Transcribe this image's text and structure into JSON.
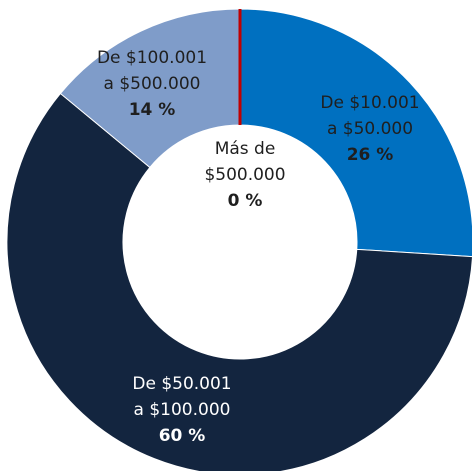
{
  "chart_data": {
    "type": "donut",
    "categories": [
      [
        "De $10.001",
        "a $50.000"
      ],
      [
        "De $50.001",
        "a $100.000"
      ],
      [
        "De $100.001",
        "a $500.000"
      ],
      [
        "Más de",
        "$500.000"
      ]
    ],
    "values": [
      26,
      60,
      14,
      0
    ],
    "value_labels": [
      "26 %",
      "60 %",
      "14 %",
      "0 %"
    ],
    "colors": [
      "#0070c0",
      "#13253f",
      "#7f9cc9",
      "#c00000"
    ]
  }
}
